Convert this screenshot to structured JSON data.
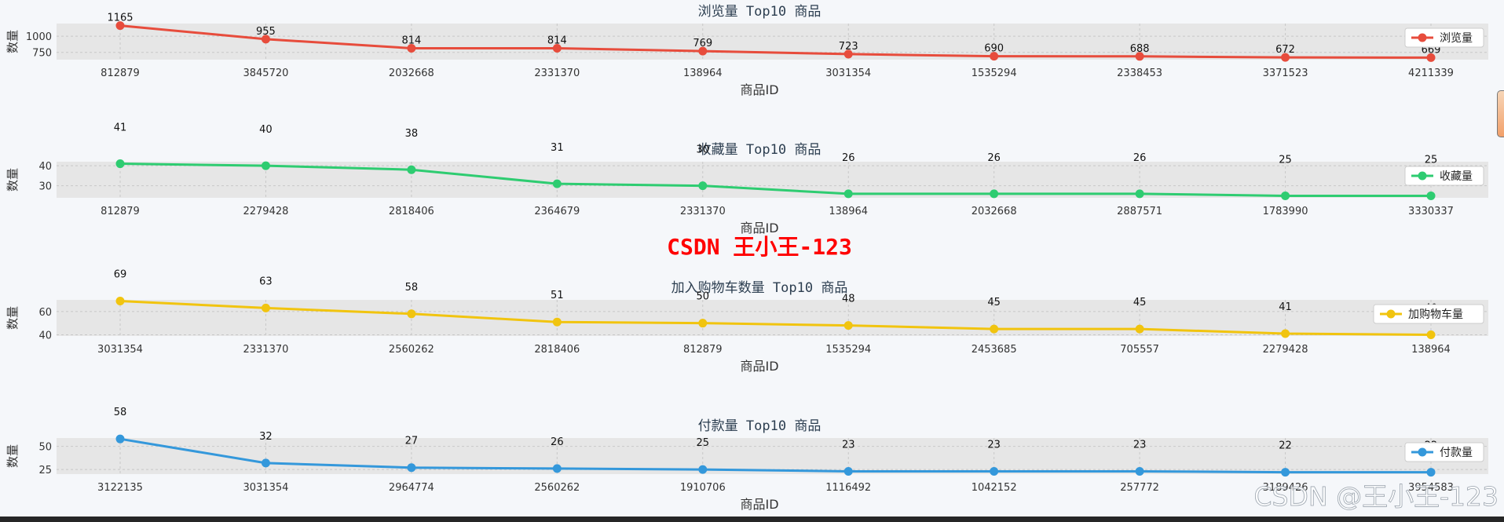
{
  "watermark_center": "CSDN 王小王-123",
  "watermark_corner": "CSDN @王小王-123",
  "colors": {
    "panel_bg": "#e6e6e6",
    "page_bg": "#f5f7fa",
    "title": "#2c3e50",
    "watermark": "#ff0000"
  },
  "chart_data": [
    {
      "type": "line",
      "title": "浏览量 Top10 商品",
      "xlabel": "商品ID",
      "ylabel": "数量",
      "categories": [
        "812879",
        "3845720",
        "2032668",
        "2331370",
        "138964",
        "3031354",
        "1535294",
        "2338453",
        "3371523",
        "4211339"
      ],
      "series": [
        {
          "name": "浏览量",
          "color": "#e74c3c",
          "values": [
            1165,
            955,
            814,
            814,
            769,
            723,
            690,
            688,
            672,
            669
          ]
        }
      ],
      "yticks": [
        750,
        1000
      ],
      "ylim": [
        637,
        1197
      ],
      "grid": true,
      "legend": "right"
    },
    {
      "type": "line",
      "title": "收藏量 Top10 商品",
      "xlabel": "商品ID",
      "ylabel": "数量",
      "categories": [
        "812879",
        "2279428",
        "2818406",
        "2364679",
        "2331370",
        "138964",
        "2032668",
        "2887571",
        "1783990",
        "3330337"
      ],
      "series": [
        {
          "name": "收藏量",
          "color": "#2ecc71",
          "values": [
            41,
            40,
            38,
            31,
            30,
            26,
            26,
            26,
            25,
            25
          ]
        }
      ],
      "yticks": [
        30,
        40
      ],
      "ylim": [
        24,
        42
      ],
      "grid": true,
      "legend": "right"
    },
    {
      "type": "line",
      "title": "加入购物车数量 Top10 商品",
      "xlabel": "商品ID",
      "ylabel": "数量",
      "categories": [
        "3031354",
        "2331370",
        "2560262",
        "2818406",
        "812879",
        "1535294",
        "2453685",
        "705557",
        "2279428",
        "138964"
      ],
      "series": [
        {
          "name": "加购物车量",
          "color": "#f1c40f",
          "values": [
            69,
            63,
            58,
            51,
            50,
            48,
            45,
            45,
            41,
            40
          ]
        }
      ],
      "yticks": [
        40,
        60
      ],
      "ylim": [
        39,
        70
      ],
      "grid": true,
      "legend": "right"
    },
    {
      "type": "line",
      "title": "付款量 Top10 商品",
      "xlabel": "商品ID",
      "ylabel": "数量",
      "categories": [
        "3122135",
        "3031354",
        "2964774",
        "2560262",
        "1910706",
        "1116492",
        "1042152",
        "257772",
        "3189426",
        "3954583"
      ],
      "series": [
        {
          "name": "付款量",
          "color": "#3498db",
          "values": [
            58,
            32,
            27,
            26,
            25,
            23,
            23,
            23,
            22,
            22
          ]
        }
      ],
      "yticks": [
        25,
        50
      ],
      "ylim": [
        20,
        59
      ],
      "grid": true,
      "legend": "right"
    }
  ]
}
